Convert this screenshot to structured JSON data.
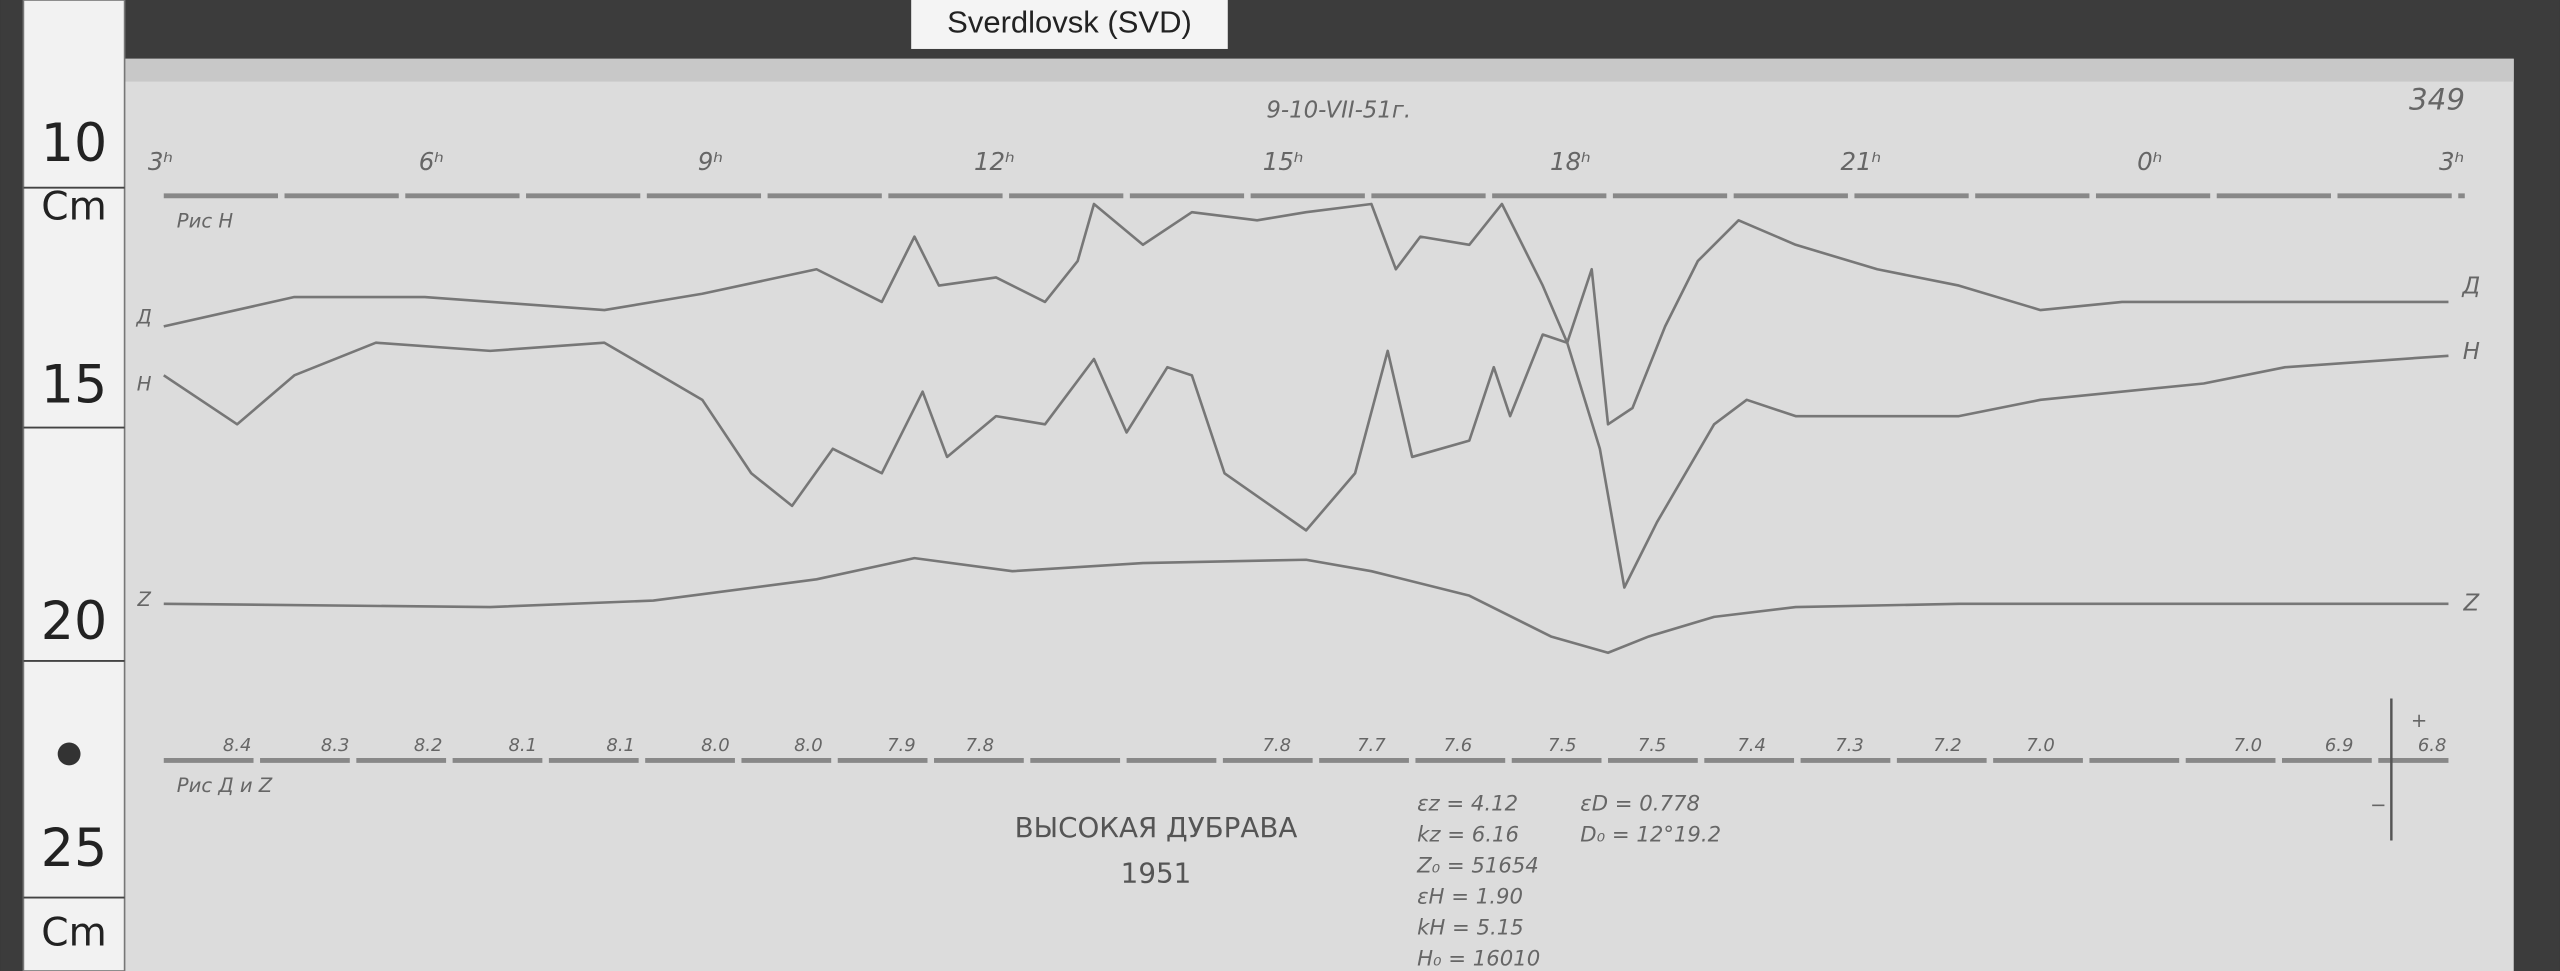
{
  "header": {
    "label": "Sverdlovsk (SVD)",
    "sheet_number": "349",
    "date_note": "9-10-VII-51г."
  },
  "ruler": {
    "labels": [
      "10",
      "Cm",
      "15",
      "20",
      "25",
      "Cm"
    ]
  },
  "magnetogram": {
    "top_baseline_label": "Рис H",
    "bottom_baseline_label": "Рис Д и Z",
    "hour_marks": [
      "3ʰ",
      "6ʰ",
      "9ʰ",
      "12ʰ",
      "15ʰ",
      "18ʰ",
      "21ʰ",
      "0ʰ",
      "3ʰ"
    ],
    "trace_labels_left": [
      "Д",
      "Н",
      "Z"
    ],
    "trace_labels_right": [
      "Д",
      "Н",
      "Z"
    ],
    "scale_marks": [
      "8.4",
      "8.3",
      "8.2",
      "8.1",
      "8.1",
      "8.0",
      "8.0",
      "7.9",
      "7.8",
      "7.8",
      "7.7",
      "7.6",
      "7.5",
      "7.5",
      "7.4",
      "7.3",
      "7.2",
      "7.0",
      "7.0",
      "6.9",
      "6.8"
    ],
    "polarity": [
      "+",
      "−"
    ]
  },
  "footer": {
    "station": "ВЫСОКАЯ ДУБРАВА",
    "year": "1951",
    "constants_left": [
      "εz = 4.12",
      "kz = 6.16",
      "Z₀ = 51654",
      "εH = 1.90",
      "kH = 5.15",
      "H₀ = 16010"
    ],
    "constants_right": [
      "εD = 0.778",
      "D₀ = 12°19.2"
    ]
  }
}
